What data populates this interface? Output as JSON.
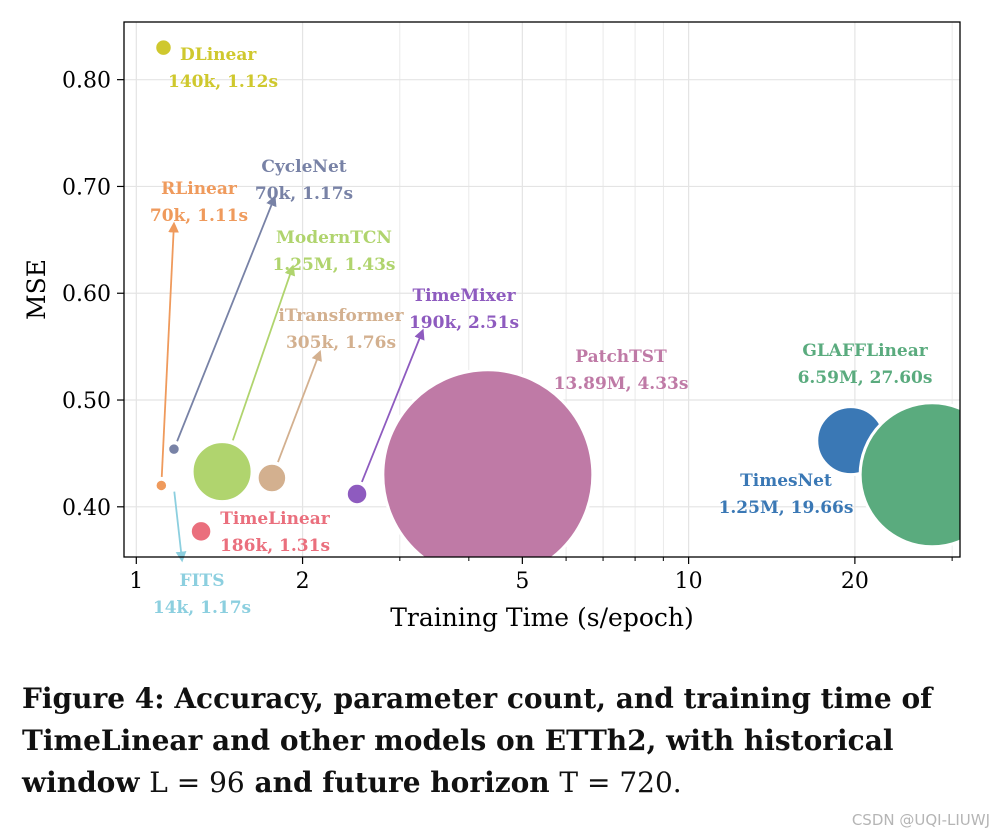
{
  "chart_data": {
    "type": "scatter",
    "xlabel": "Training Time (s/epoch)",
    "ylabel": "MSE",
    "xscale": "log",
    "xlim": [
      0.95,
      31
    ],
    "ylim": [
      0.353,
      0.854
    ],
    "xticks": [
      1,
      2,
      5,
      10,
      20
    ],
    "yticks": [
      0.4,
      0.5,
      0.6,
      0.7,
      0.8
    ],
    "xtick_labels": [
      "1",
      "2",
      "5",
      "10",
      "20"
    ],
    "ytick_labels": [
      "0.40",
      "0.50",
      "0.60",
      "0.70",
      "0.80"
    ],
    "grid": true,
    "points": [
      {
        "name": "DLinear",
        "info": "140k, 1.12s",
        "x": 1.12,
        "y": 0.83,
        "params_k": 140,
        "color": "#cfc82e",
        "bubble_scale": 8
      },
      {
        "name": "RLinear",
        "info": "70k, 1.11s",
        "x": 1.11,
        "y": 0.42,
        "params_k": 70,
        "color": "#ef9a5c",
        "bubble_scale": 5.5,
        "label_x": 1.17,
        "label_y": 0.665
      },
      {
        "name": "CycleNet",
        "info": "70k, 1.17s",
        "x": 1.17,
        "y": 0.454,
        "params_k": 70,
        "color": "#7882a6",
        "bubble_scale": 5.5,
        "label_x": 1.78,
        "label_y": 0.69
      },
      {
        "name": "ModernTCN",
        "info": "1.25M, 1.43s",
        "x": 1.43,
        "y": 0.433,
        "params_k": 1250,
        "color": "#b0d46e",
        "bubble_scale": 30,
        "label_x": 1.92,
        "label_y": 0.625
      },
      {
        "name": "iTransformer",
        "info": "305k, 1.76s",
        "x": 1.76,
        "y": 0.427,
        "params_k": 305,
        "color": "#d3b08f",
        "bubble_scale": 14,
        "label_x": 2.15,
        "label_y": 0.545
      },
      {
        "name": "TimeMixer",
        "info": "190k, 2.51s",
        "x": 2.51,
        "y": 0.412,
        "params_k": 190,
        "color": "#8e5bbf",
        "bubble_scale": 10,
        "label_x": 3.3,
        "label_y": 0.565
      },
      {
        "name": "PatchTST",
        "info": "13.89M, 4.33s",
        "x": 4.33,
        "y": 0.43,
        "params_k": 13890,
        "color": "#bf7aa6",
        "bubble_scale": 105
      },
      {
        "name": "TimesNet",
        "info": "1.25M, 19.66s",
        "x": 19.66,
        "y": 0.462,
        "params_k": 1250,
        "color": "#3a78b5",
        "bubble_scale": 34
      },
      {
        "name": "GLAFFLinear",
        "info": "6.59M, 27.60s",
        "x": 27.6,
        "y": 0.43,
        "params_k": 6590,
        "color": "#5aab7e",
        "bubble_scale": 72
      },
      {
        "name": "TimeLinear",
        "info": "186k, 1.31s",
        "x": 1.31,
        "y": 0.377,
        "params_k": 186,
        "color": "#ea6f7d",
        "bubble_scale": 10
      },
      {
        "name": "FITS",
        "info": "14k, 1.17s",
        "x": 1.17,
        "y": 0.417,
        "params_k": 14,
        "color": "#8ccfdf",
        "bubble_scale": 0,
        "label_x": 1.21,
        "label_y": 0.35
      }
    ]
  },
  "caption": {
    "bold_text": "Figure 4: Accuracy, parameter count, and training time of TimeLinear and other models on ETTh2, with historical window",
    "math_window": "L = 96",
    "and_text": "and future horizon",
    "math_horizon": "T = 720."
  },
  "watermark": "CSDN @UQI-LIUWJ"
}
